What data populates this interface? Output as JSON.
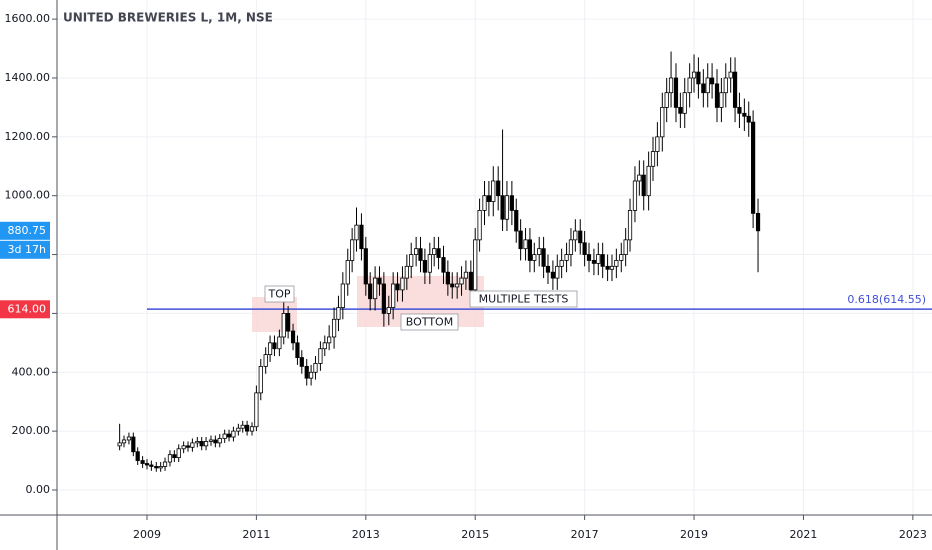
{
  "chart_data": {
    "type": "candlestick",
    "title": "UNITED BREWERIES L, 1M, NSE",
    "x": [
      2008.5,
      2008.58,
      2008.67,
      2008.75,
      2008.83,
      2008.92,
      2009.0,
      2009.08,
      2009.17,
      2009.25,
      2009.33,
      2009.42,
      2009.5,
      2009.58,
      2009.67,
      2009.75,
      2009.83,
      2009.92,
      2010.0,
      2010.08,
      2010.17,
      2010.25,
      2010.33,
      2010.42,
      2010.5,
      2010.58,
      2010.67,
      2010.75,
      2010.83,
      2010.92,
      2011.0,
      2011.08,
      2011.17,
      2011.25,
      2011.33,
      2011.42,
      2011.5,
      2011.58,
      2011.67,
      2011.75,
      2011.83,
      2011.92,
      2012.0,
      2012.08,
      2012.17,
      2012.25,
      2012.33,
      2012.42,
      2012.5,
      2012.58,
      2012.67,
      2012.75,
      2012.83,
      2012.92,
      2013.0,
      2013.08,
      2013.17,
      2013.25,
      2013.33,
      2013.42,
      2013.5,
      2013.58,
      2013.67,
      2013.75,
      2013.83,
      2013.92,
      2014.0,
      2014.08,
      2014.17,
      2014.25,
      2014.33,
      2014.42,
      2014.5,
      2014.58,
      2014.67,
      2014.75,
      2014.83,
      2014.92,
      2015.0,
      2015.08,
      2015.17,
      2015.25,
      2015.33,
      2015.42,
      2015.5,
      2015.58,
      2015.67,
      2015.75,
      2015.83,
      2015.92,
      2016.0,
      2016.08,
      2016.17,
      2016.25,
      2016.33,
      2016.42,
      2016.5,
      2016.58,
      2016.67,
      2016.75,
      2016.83,
      2016.92,
      2017.0,
      2017.08,
      2017.17,
      2017.25,
      2017.33,
      2017.42,
      2017.5,
      2017.58,
      2017.67,
      2017.75,
      2017.83,
      2017.92,
      2018.0,
      2018.08,
      2018.17,
      2018.25,
      2018.33,
      2018.42,
      2018.5,
      2018.58,
      2018.67,
      2018.75,
      2018.83,
      2018.92,
      2019.0,
      2019.08,
      2019.17,
      2019.25,
      2019.33,
      2019.42,
      2019.5,
      2019.58,
      2019.67,
      2019.75,
      2019.83,
      2019.92,
      2020.0,
      2020.08,
      2020.17
    ],
    "open": [
      150,
      160,
      170,
      180,
      130,
      100,
      90,
      85,
      80,
      75,
      80,
      95,
      120,
      110,
      140,
      150,
      145,
      160,
      165,
      150,
      165,
      170,
      160,
      175,
      190,
      180,
      200,
      210,
      220,
      200,
      215,
      330,
      420,
      460,
      500,
      480,
      520,
      600,
      540,
      500,
      450,
      420,
      380,
      400,
      430,
      480,
      500,
      520,
      580,
      620,
      700,
      780,
      850,
      900,
      820,
      700,
      650,
      720,
      700,
      600,
      620,
      700,
      680,
      720,
      760,
      800,
      820,
      780,
      740,
      800,
      820,
      790,
      740,
      700,
      690,
      700,
      720,
      740,
      680,
      850,
      950,
      1000,
      980,
      1050,
      1000,
      920,
      1000,
      950,
      880,
      820,
      850,
      780,
      800,
      820,
      760,
      740,
      720,
      760,
      780,
      800,
      850,
      880,
      840,
      800,
      780,
      770,
      800,
      760,
      750,
      760,
      780,
      800,
      850,
      950,
      1050,
      1070,
      1000,
      1100,
      1150,
      1200,
      1300,
      1350,
      1400,
      1300,
      1280,
      1350,
      1400,
      1420,
      1380,
      1350,
      1400,
      1380,
      1300,
      1350,
      1400,
      1420,
      1300,
      1280,
      1270,
      1250,
      940
    ],
    "high": [
      225,
      185,
      195,
      195,
      145,
      115,
      105,
      100,
      95,
      95,
      110,
      135,
      135,
      155,
      165,
      165,
      175,
      180,
      180,
      180,
      185,
      185,
      190,
      205,
      205,
      215,
      225,
      235,
      235,
      230,
      355,
      445,
      485,
      525,
      525,
      545,
      640,
      625,
      565,
      525,
      475,
      445,
      425,
      455,
      505,
      525,
      560,
      620,
      660,
      740,
      820,
      890,
      960,
      940,
      860,
      740,
      760,
      760,
      740,
      660,
      740,
      740,
      760,
      800,
      840,
      860,
      860,
      820,
      840,
      860,
      860,
      830,
      780,
      740,
      740,
      760,
      780,
      780,
      890,
      990,
      1050,
      1050,
      1100,
      1100,
      1225,
      1050,
      1050,
      990,
      920,
      890,
      890,
      840,
      860,
      860,
      800,
      780,
      800,
      820,
      840,
      890,
      920,
      920,
      880,
      840,
      820,
      840,
      840,
      800,
      800,
      820,
      840,
      890,
      990,
      1100,
      1120,
      1120,
      1150,
      1200,
      1250,
      1350,
      1400,
      1490,
      1450,
      1350,
      1400,
      1450,
      1480,
      1470,
      1430,
      1450,
      1450,
      1430,
      1400,
      1450,
      1470,
      1470,
      1350,
      1330,
      1320,
      1290,
      990
    ],
    "low": [
      135,
      145,
      155,
      115,
      85,
      75,
      70,
      65,
      62,
      62,
      65,
      80,
      95,
      95,
      125,
      130,
      130,
      145,
      135,
      135,
      150,
      145,
      145,
      160,
      165,
      165,
      185,
      195,
      185,
      185,
      200,
      305,
      395,
      435,
      455,
      455,
      495,
      515,
      475,
      425,
      395,
      355,
      355,
      375,
      405,
      455,
      475,
      480,
      540,
      580,
      660,
      740,
      810,
      780,
      660,
      610,
      610,
      660,
      555,
      560,
      580,
      640,
      640,
      680,
      720,
      760,
      740,
      700,
      700,
      760,
      750,
      700,
      660,
      650,
      650,
      660,
      680,
      640,
      640,
      810,
      900,
      930,
      930,
      950,
      880,
      880,
      900,
      840,
      780,
      780,
      740,
      740,
      760,
      720,
      700,
      680,
      680,
      720,
      740,
      760,
      810,
      800,
      760,
      740,
      730,
      730,
      720,
      710,
      710,
      720,
      740,
      760,
      810,
      910,
      1000,
      950,
      950,
      1050,
      1100,
      1150,
      1250,
      1300,
      1250,
      1230,
      1230,
      1300,
      1350,
      1330,
      1300,
      1300,
      1330,
      1250,
      1250,
      1300,
      1350,
      1250,
      1230,
      1220,
      1200,
      890,
      740
    ],
    "close": [
      160,
      170,
      180,
      130,
      100,
      90,
      85,
      80,
      75,
      80,
      95,
      120,
      110,
      140,
      150,
      145,
      160,
      165,
      150,
      165,
      170,
      160,
      175,
      190,
      180,
      200,
      210,
      220,
      200,
      215,
      330,
      420,
      460,
      500,
      480,
      520,
      600,
      540,
      500,
      450,
      420,
      380,
      400,
      430,
      480,
      500,
      520,
      580,
      620,
      700,
      780,
      850,
      900,
      820,
      700,
      650,
      720,
      700,
      600,
      620,
      700,
      680,
      720,
      760,
      800,
      820,
      780,
      740,
      800,
      820,
      790,
      740,
      700,
      690,
      700,
      720,
      740,
      680,
      850,
      950,
      1000,
      980,
      1050,
      1000,
      920,
      1000,
      950,
      880,
      820,
      850,
      780,
      800,
      820,
      760,
      740,
      720,
      760,
      780,
      800,
      850,
      880,
      840,
      800,
      780,
      770,
      800,
      760,
      750,
      760,
      780,
      800,
      850,
      950,
      1050,
      1070,
      1000,
      1100,
      1150,
      1200,
      1300,
      1350,
      1400,
      1300,
      1280,
      1350,
      1400,
      1420,
      1380,
      1350,
      1400,
      1380,
      1300,
      1350,
      1400,
      1420,
      1300,
      1280,
      1270,
      1250,
      940,
      880.75
    ],
    "up_color": "#ffffff",
    "down_color": "#000000",
    "xlim": [
      2007.355,
      2023.35
    ],
    "xticks": [
      2009,
      2011,
      2013,
      2015,
      2017,
      2019,
      2021,
      2023
    ],
    "ylim": [
      -85,
      1665
    ],
    "yticks": [
      {
        "value": 0,
        "label": "0.00"
      },
      {
        "value": 200,
        "label": "200.00"
      },
      {
        "value": 400,
        "label": "400.00"
      },
      {
        "value": 600,
        "label": "600.00"
      },
      {
        "value": 800,
        "label": "800.00"
      },
      {
        "value": 1000,
        "label": "1000.00"
      },
      {
        "value": 1200,
        "label": "1200.00"
      },
      {
        "value": 1400,
        "label": "1400.00"
      },
      {
        "value": 1600,
        "label": "1600.00"
      }
    ],
    "grid": true,
    "hline": {
      "value": 614.55,
      "label": "0.618(614.55)",
      "color": "#4150d8"
    },
    "price_badges": [
      {
        "value": 614,
        "label": "614.00",
        "color": "#f23645"
      },
      {
        "value": 880.75,
        "label": "880.75",
        "color": "#2196f3",
        "countdown": "3d 17h"
      }
    ],
    "annotations": [
      "TOP",
      "BOTTOM",
      "MULTIPLE TESTS"
    ]
  }
}
